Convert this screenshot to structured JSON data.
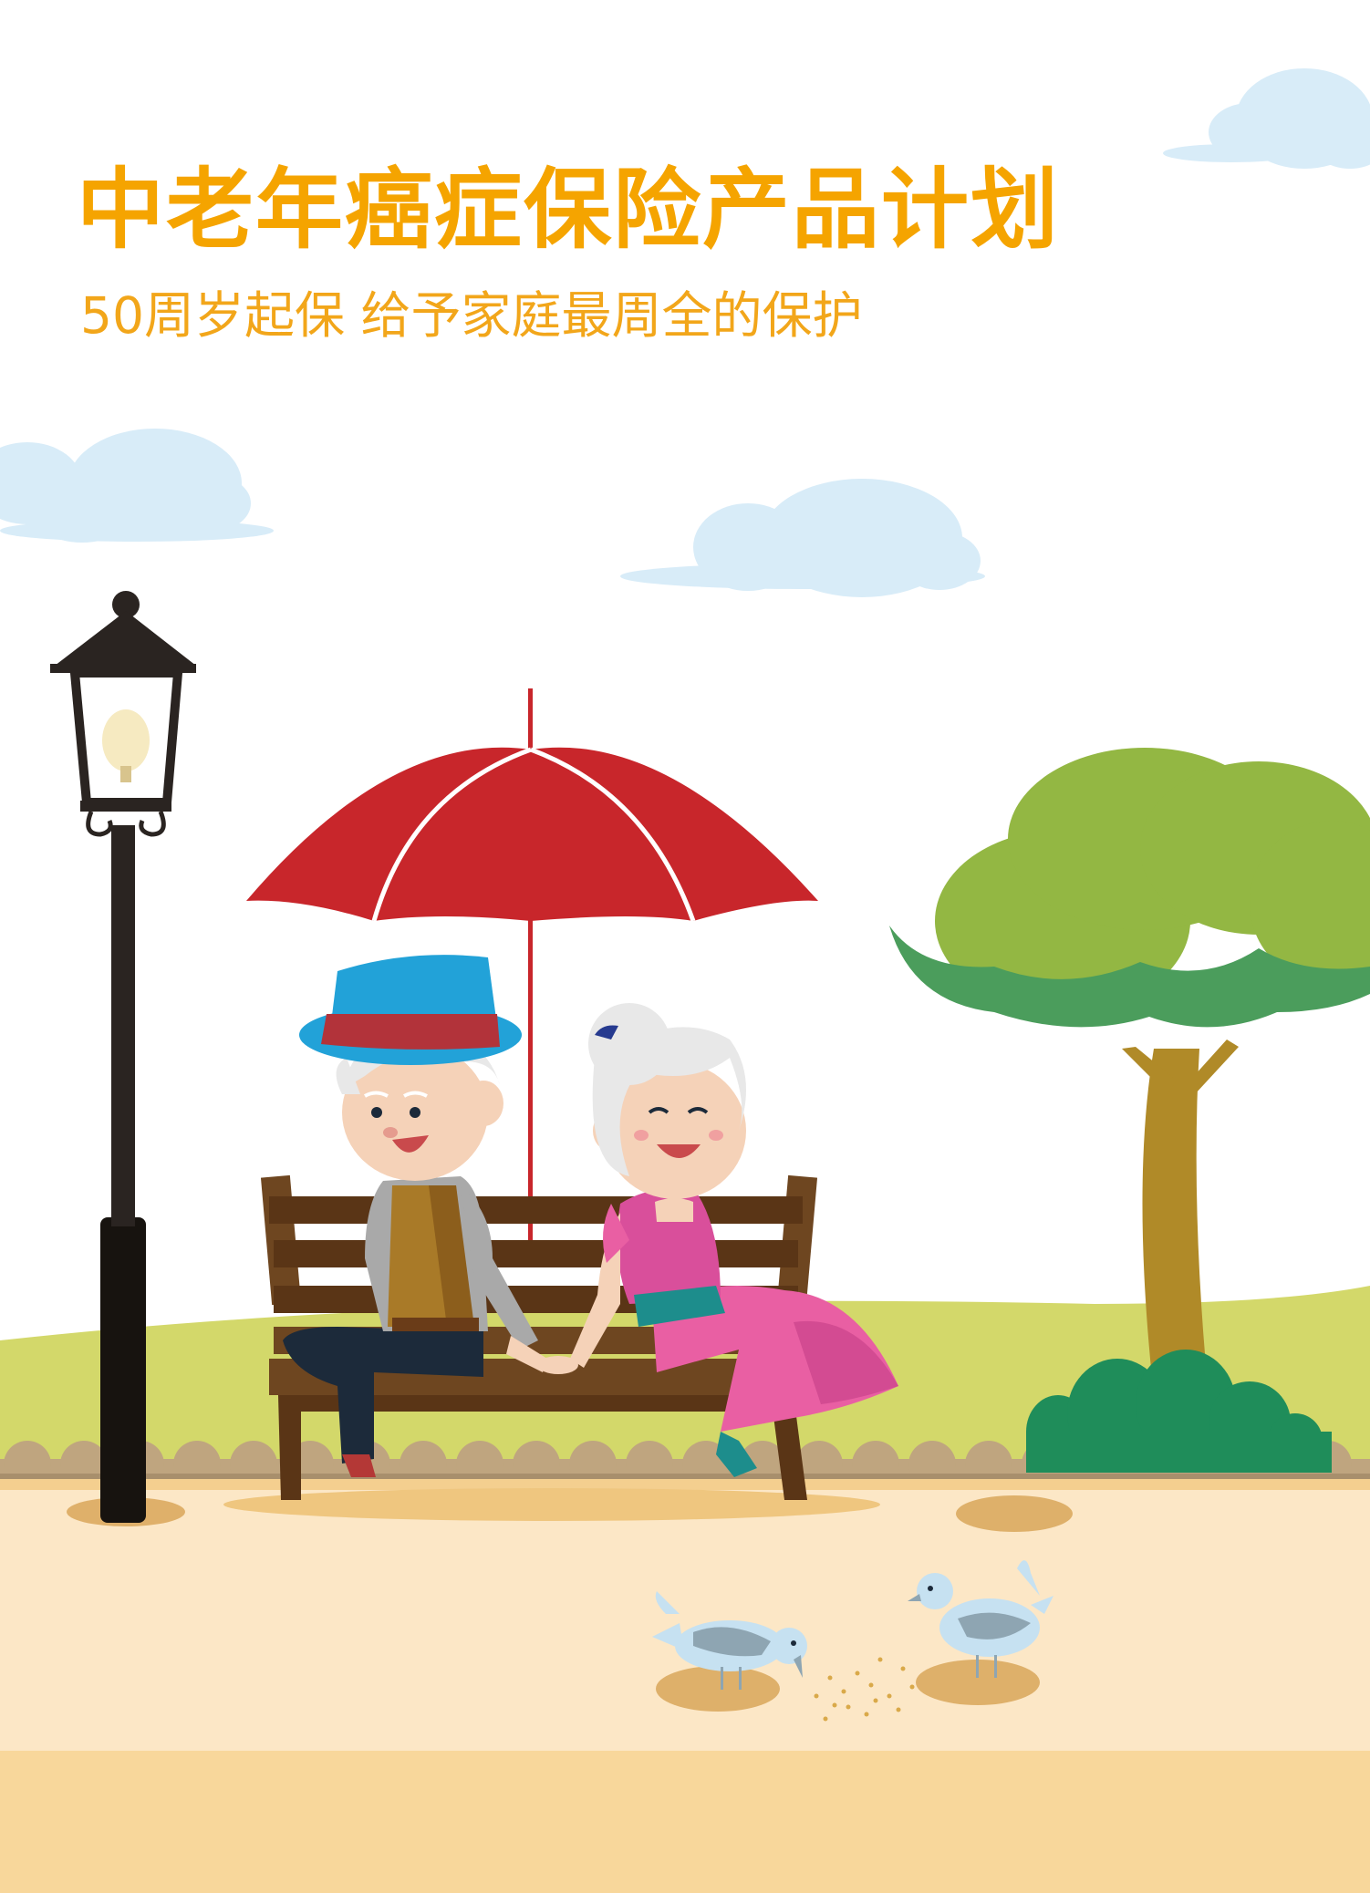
{
  "poster": {
    "title": "中老年癌症保险产品计划",
    "subtitle": "50周岁起保 给予家庭最周全的保护"
  },
  "colors": {
    "title": "#f5a400",
    "subtitle": "#f2a61a",
    "sky_cloud": "#d8ecf8",
    "umbrella": "#c8262b",
    "grass": "#d3d86a",
    "ground": "#fce7c6",
    "ground_strip": "#f8d79b",
    "tree_light": "#93b743",
    "tree_dark": "#4b9d5c",
    "bush": "#1f8d5a",
    "trunk": "#b08a28",
    "bench": "#6e4620",
    "bench_dark": "#5a3516",
    "lamp": "#2a2421",
    "man_hat": "#22a2d8",
    "man_hat_band": "#b2333a",
    "woman_dress": "#e95fa3",
    "woman_top": "#d94f9b",
    "pigeon": "#c6e1f1",
    "pigeon_wing": "#8ea5b2"
  },
  "icons": {
    "street_lamp": "street-lamp-icon",
    "umbrella": "umbrella-icon",
    "tree": "tree-icon",
    "bench": "park-bench-icon",
    "pigeon": "pigeon-icon"
  }
}
